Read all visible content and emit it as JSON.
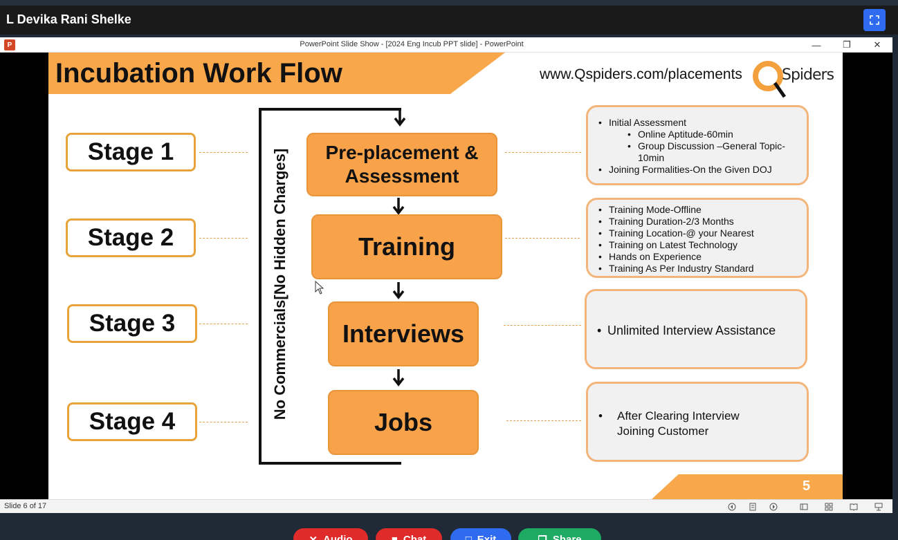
{
  "meeting": {
    "presenter_name": "L Devika Rani Shelke",
    "fullscreen_icon": "fullscreen-icon",
    "accent_color": "#2f6bf0"
  },
  "window": {
    "title": "PowerPoint Slide Show - [2024 Eng Incub PPT slide] - PowerPoint",
    "app_icon_label": "P",
    "minimize": "—",
    "restore": "❐",
    "close": "✕"
  },
  "slide": {
    "title": "Incubation Work Flow",
    "url": "www.Qspiders.com/placements",
    "logo_text": "Spiders",
    "vertical_label": "No Commercials[No Hidden Charges]",
    "slide_number": "5",
    "stages": [
      {
        "label": "Stage 1"
      },
      {
        "label": "Stage 2"
      },
      {
        "label": "Stage 3"
      },
      {
        "label": "Stage 4"
      }
    ],
    "flow": [
      {
        "label": "Pre-placement & Assessment"
      },
      {
        "label": "Training"
      },
      {
        "label": "Interviews"
      },
      {
        "label": "Jobs"
      }
    ],
    "info": {
      "stage1": {
        "item1": "Initial Assessment",
        "sub1": "Online Aptitude-60min",
        "sub2": "Group Discussion –General Topic-10min",
        "item2": "Joining Formalities-On the Given DOJ"
      },
      "stage2": [
        "Training Mode-Offline",
        "Training Duration-2/3 Months",
        "Training Location-@ your Nearest",
        "Training on Latest Technology",
        "Hands on Experience",
        "Training As Per Industry Standard"
      ],
      "stage3": [
        "Unlimited Interview Assistance"
      ],
      "stage4": [
        "After Clearing Interview Joining Customer"
      ]
    },
    "brand_color": "#f8a74b"
  },
  "status": {
    "slide_counter": "Slide 6 of 17"
  },
  "toolbar": {
    "audio": "Audio",
    "chat": "Chat",
    "exit": "Exit",
    "share": "Share"
  }
}
